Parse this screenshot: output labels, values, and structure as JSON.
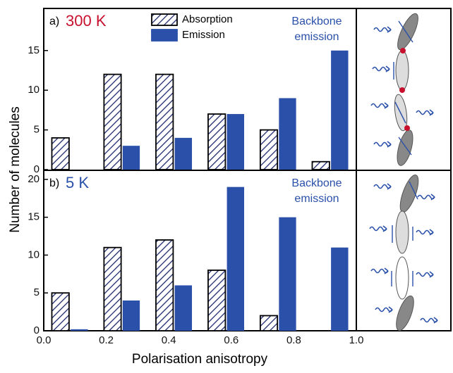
{
  "chart_data": [
    {
      "type": "histogram",
      "panel_label": "a)",
      "temperature": "300 K",
      "temperature_color": "#c8102e",
      "annotation": [
        "Backbone",
        "emission"
      ],
      "y_label": "Number of molecules",
      "bins": [
        0,
        0.167,
        0.333,
        0.5,
        0.667,
        0.833,
        1.0
      ],
      "series": [
        {
          "name": "Absorption",
          "color": "#1f2a6e",
          "hatched": true,
          "values": [
            4,
            12,
            12,
            7,
            5,
            1
          ]
        },
        {
          "name": "Emission",
          "color": "#2a50aa",
          "hatched": false,
          "values": [
            0,
            3,
            4,
            7,
            9,
            15
          ]
        }
      ],
      "xlim": [
        0,
        1
      ],
      "ylim": [
        0,
        20.3
      ],
      "yticks": [
        0,
        5,
        10,
        15
      ]
    },
    {
      "type": "histogram",
      "panel_label": "b)",
      "temperature": "5 K",
      "temperature_color": "#2a50aa",
      "annotation": [
        "Backbone",
        "emission"
      ],
      "x_label": "Polarisation anisotropy",
      "bins": [
        0,
        0.167,
        0.333,
        0.5,
        0.667,
        0.833,
        1.0
      ],
      "series": [
        {
          "name": "Absorption",
          "color": "#1f2a6e",
          "hatched": true,
          "values": [
            5,
            11,
            12,
            8,
            2,
            0
          ]
        },
        {
          "name": "Emission",
          "color": "#2a50aa",
          "hatched": false,
          "values": [
            0.2,
            4,
            6,
            19,
            15,
            11
          ]
        }
      ],
      "xlim": [
        0,
        1
      ],
      "ylim": [
        0,
        21.2
      ],
      "yticks": [
        0,
        5,
        10,
        15,
        20
      ],
      "xticks": [
        {
          "value": 0,
          "label": "0.0"
        },
        0.2,
        0.4,
        0.6,
        0.8,
        {
          "value": 1,
          "label": "1.0"
        }
      ]
    }
  ]
}
